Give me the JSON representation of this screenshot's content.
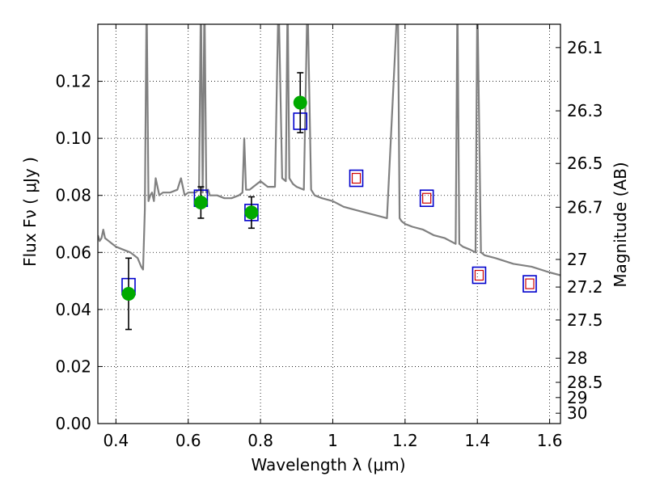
{
  "chart_data": {
    "type": "line",
    "xlabel": "Wavelength  λ (μm)",
    "ylabel": "Flux  Fν ( μJy )",
    "y2label": "Magnitude (AB)",
    "xlim": [
      0.35,
      1.63
    ],
    "ylim": [
      0.0,
      0.14
    ],
    "xticks": [
      0.4,
      0.6,
      0.8,
      1.0,
      1.2,
      1.4,
      1.6
    ],
    "xtick_labels": [
      "0.4",
      "0.6",
      "0.8",
      "1",
      "1.2",
      "1.4",
      "1.6"
    ],
    "yticks": [
      0.0,
      0.02,
      0.04,
      0.06,
      0.08,
      0.1,
      0.12
    ],
    "ytick_labels": [
      "0.00",
      "0.02",
      "0.04",
      "0.06",
      "0.08",
      "0.10",
      "0.12"
    ],
    "y2ticks": [
      26.1,
      26.3,
      26.5,
      26.7,
      27,
      27.2,
      27.5,
      28,
      28.5,
      29,
      30
    ],
    "y2tick_labels": [
      "26.1",
      "26.3",
      "26.5",
      "26.7",
      "27",
      "27.2",
      "27.5",
      "28",
      "28.5",
      "29",
      "30"
    ],
    "grid": true,
    "colors": {
      "model": "#808080",
      "observed": "#00aa00",
      "model_band": "#0000cc",
      "model_band_inner": "#cc0000",
      "errorbar": "#000000"
    },
    "series": [
      {
        "kind": "model_spectrum",
        "x": [
          0.35,
          0.355,
          0.36,
          0.365,
          0.37,
          0.38,
          0.39,
          0.4,
          0.42,
          0.44,
          0.46,
          0.47,
          0.475,
          0.48,
          0.485,
          0.49,
          0.495,
          0.5,
          0.505,
          0.51,
          0.52,
          0.53,
          0.55,
          0.57,
          0.58,
          0.59,
          0.6,
          0.62,
          0.63,
          0.635,
          0.64,
          0.645,
          0.65,
          0.655,
          0.66,
          0.67,
          0.68,
          0.7,
          0.72,
          0.74,
          0.75,
          0.755,
          0.76,
          0.77,
          0.78,
          0.8,
          0.82,
          0.84,
          0.85,
          0.86,
          0.87,
          0.875,
          0.88,
          0.89,
          0.9,
          0.92,
          0.93,
          0.94,
          0.95,
          0.97,
          1.0,
          1.03,
          1.06,
          1.09,
          1.12,
          1.15,
          1.18,
          1.185,
          1.19,
          1.2,
          1.22,
          1.25,
          1.28,
          1.31,
          1.34,
          1.345,
          1.35,
          1.36,
          1.38,
          1.395,
          1.4,
          1.41,
          1.42,
          1.45,
          1.5,
          1.55,
          1.6,
          1.63
        ],
        "y": [
          0.066,
          0.064,
          0.065,
          0.068,
          0.065,
          0.064,
          0.063,
          0.062,
          0.061,
          0.06,
          0.058,
          0.055,
          0.054,
          0.075,
          0.15,
          0.078,
          0.08,
          0.081,
          0.078,
          0.086,
          0.08,
          0.081,
          0.081,
          0.082,
          0.086,
          0.08,
          0.081,
          0.081,
          0.082,
          0.15,
          0.081,
          0.15,
          0.081,
          0.082,
          0.08,
          0.08,
          0.08,
          0.079,
          0.079,
          0.08,
          0.081,
          0.1,
          0.082,
          0.082,
          0.083,
          0.085,
          0.083,
          0.083,
          0.15,
          0.086,
          0.085,
          0.15,
          0.086,
          0.084,
          0.083,
          0.082,
          0.15,
          0.082,
          0.08,
          0.079,
          0.078,
          0.076,
          0.075,
          0.074,
          0.073,
          0.072,
          0.15,
          0.072,
          0.071,
          0.07,
          0.069,
          0.068,
          0.066,
          0.065,
          0.063,
          0.15,
          0.063,
          0.062,
          0.061,
          0.06,
          0.15,
          0.06,
          0.059,
          0.058,
          0.056,
          0.055,
          0.053,
          0.052
        ]
      },
      {
        "kind": "model_photometry",
        "x": [
          0.435,
          0.635,
          0.775,
          0.91,
          1.065,
          1.26,
          1.405,
          1.545
        ],
        "y": [
          0.048,
          0.079,
          0.074,
          0.106,
          0.086,
          0.079,
          0.052,
          0.049
        ]
      },
      {
        "kind": "observed_photometry",
        "x": [
          0.435,
          0.635,
          0.775,
          0.91
        ],
        "y": [
          0.0455,
          0.0775,
          0.074,
          0.1125
        ],
        "yerr": [
          0.0125,
          0.0055,
          0.0055,
          0.0105
        ]
      }
    ]
  }
}
